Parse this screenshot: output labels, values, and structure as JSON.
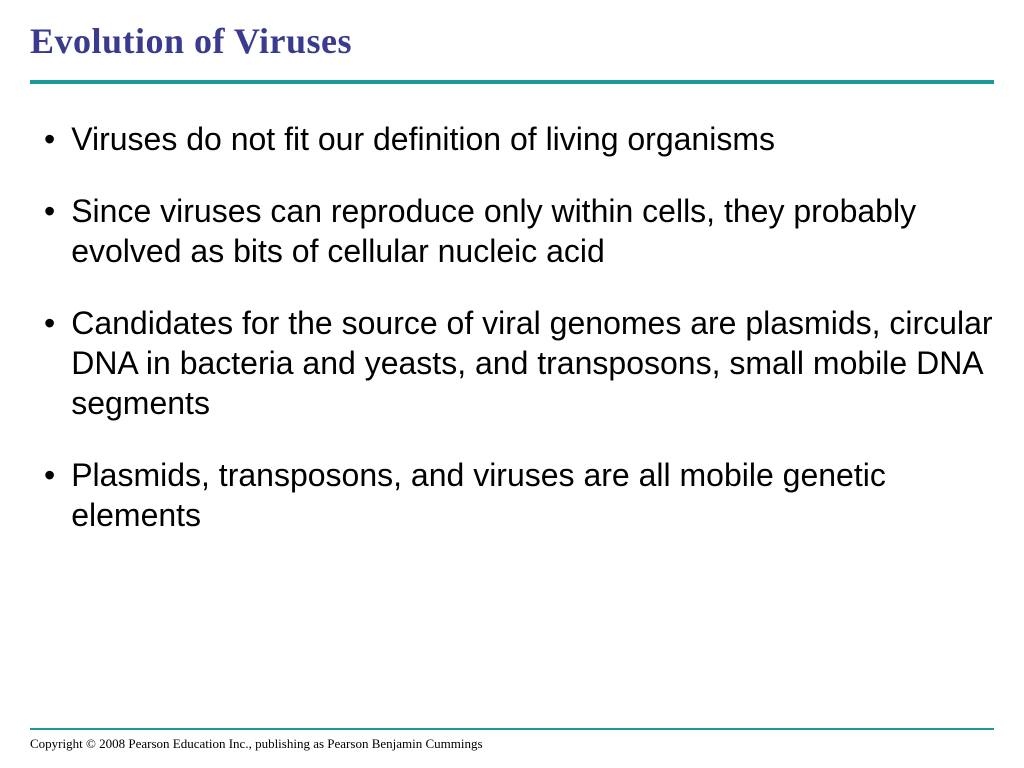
{
  "slide": {
    "title": "Evolution of Viruses",
    "title_color": "#3a3a8f",
    "title_fontsize": 36,
    "title_font": "Times New Roman",
    "divider_color": "#1a9b96",
    "background_color": "#ffffff",
    "body_fontsize": 32,
    "body_color": "#000000",
    "body_font": "Arial",
    "bullets": [
      "Viruses do not fit our definition of living organisms",
      "Since viruses can reproduce only within cells, they probably evolved as bits of cellular nucleic acid",
      "Candidates for the source of viral genomes are plasmids, circular DNA in bacteria and yeasts, and transposons, small mobile DNA segments",
      "Plasmids, transposons, and viruses are all mobile genetic elements"
    ],
    "copyright": "Copyright © 2008 Pearson Education Inc., publishing  as Pearson Benjamin Cummings",
    "copyright_fontsize": 13
  }
}
